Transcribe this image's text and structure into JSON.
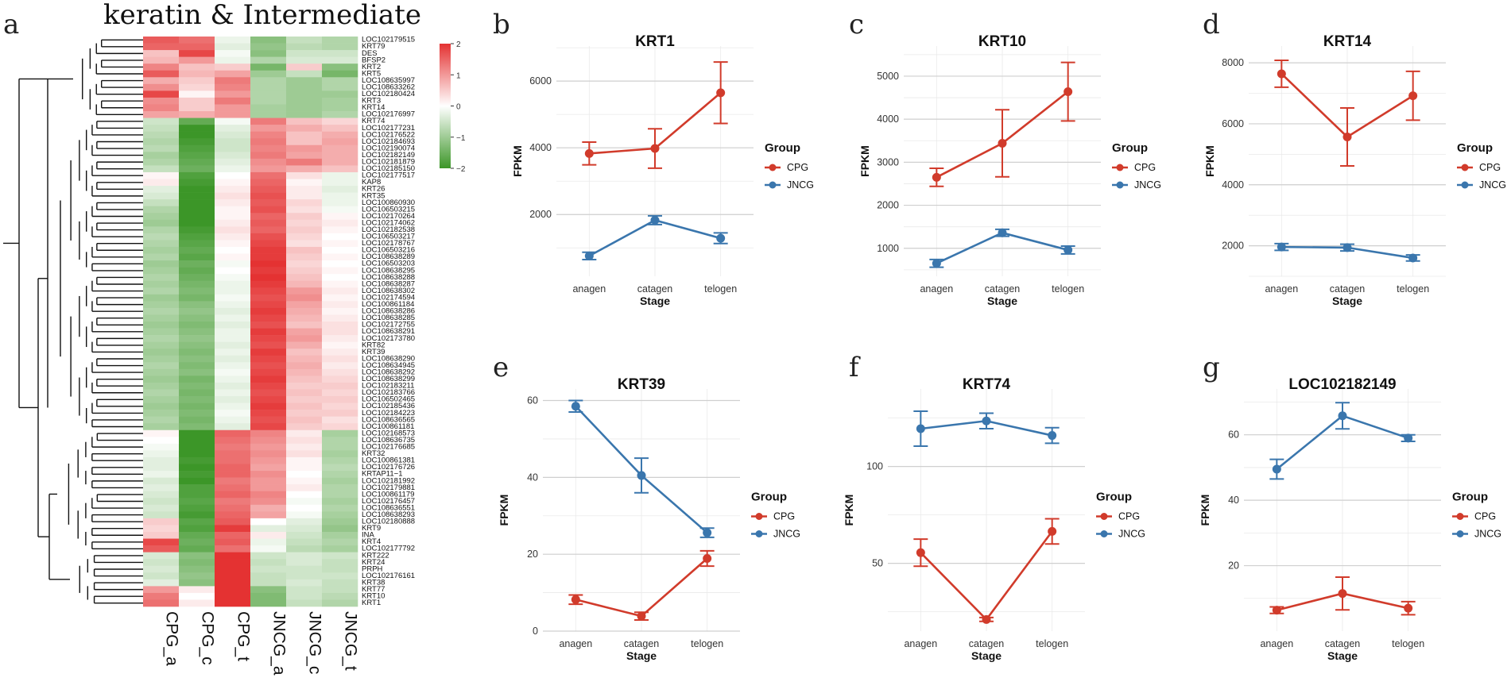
{
  "colors": {
    "CPG": "#d13b2b",
    "JNCG": "#3a76ad"
  },
  "heatmap": {
    "letter": "a",
    "title": "keratin & Intermediate",
    "columns": [
      "CPG_a",
      "CPG_c",
      "CPG_t",
      "JNCG_a",
      "JNCG_c",
      "JNCG_t"
    ],
    "colorbar": {
      "ticks": [
        "2",
        "1",
        "0",
        "−1",
        "−2"
      ],
      "min": -2,
      "max": 2
    },
    "genes": [
      "LOC102179515",
      "KRT79",
      "DES",
      "BFSP2",
      "KRT2",
      "KRT5",
      "LOC108635997",
      "LOC108633262",
      "LOC102180424",
      "KRT3",
      "KRT14",
      "LOC102176997",
      "KRT74",
      "LOC102177231",
      "LOC102176522",
      "LOC102184693",
      "LOC102190074",
      "LOC102182149",
      "LOC102181879",
      "LOC102185150",
      "LOC102177517",
      "KAP8",
      "KRT26",
      "KRT35",
      "LOC100860930",
      "LOC106503215",
      "LOC102170264",
      "LOC102174062",
      "LOC102182538",
      "LOC106503217",
      "LOC102178767",
      "LOC106503216",
      "LOC108638289",
      "LOC106503203",
      "LOC108638295",
      "LOC108638288",
      "LOC108638287",
      "LOC108638302",
      "LOC102174594",
      "LOC100861184",
      "LOC108638286",
      "LOC108638285",
      "LOC102172755",
      "LOC108638291",
      "LOC102173780",
      "KRT82",
      "KRT39",
      "LOC108638290",
      "LOC108634945",
      "LOC108638292",
      "LOC108638299",
      "LOC102183211",
      "LOC102183766",
      "LOC106502465",
      "LOC102185436",
      "LOC102184223",
      "LOC108636565",
      "LOC100861181",
      "LOC102168573",
      "LOC108636735",
      "LOC102176685",
      "KRT32",
      "LOC100861381",
      "LOC102176726",
      "KRTAP11−1",
      "LOC102181992",
      "LOC102179881",
      "LOC100861179",
      "LOC102176457",
      "LOC108636551",
      "LOC108638293",
      "LOC102180888",
      "KRT9",
      "INA",
      "KRT4",
      "LOC102177792",
      "KRT222",
      "KRT24",
      "PRPH",
      "LOC102176161",
      "KRT38",
      "KRT77",
      "KRT10",
      "KRT1"
    ],
    "values": [
      [
        1.6,
        1.4,
        -0.2,
        -1.2,
        -0.6,
        -0.8
      ],
      [
        1.5,
        1.5,
        -0.3,
        -1.1,
        -0.7,
        -0.8
      ],
      [
        0.6,
        1.8,
        -0.1,
        -1.2,
        -0.5,
        -0.5
      ],
      [
        0.7,
        1.0,
        -0.2,
        -0.8,
        -0.4,
        -0.4
      ],
      [
        1.2,
        0.6,
        0.5,
        -1.4,
        0.5,
        -1.2
      ],
      [
        1.6,
        0.7,
        0.9,
        -1.0,
        -0.6,
        -1.4
      ],
      [
        0.8,
        0.5,
        1.3,
        -0.8,
        -1.0,
        -0.8
      ],
      [
        1.1,
        0.4,
        1.2,
        -0.8,
        -1.0,
        -0.8
      ],
      [
        1.8,
        0.1,
        1.0,
        -0.8,
        -1.0,
        -1.0
      ],
      [
        1.1,
        0.5,
        1.3,
        -0.8,
        -1.0,
        -0.9
      ],
      [
        1.2,
        0.5,
        1.0,
        -0.9,
        -1.0,
        -0.9
      ],
      [
        0.9,
        0.8,
        1.0,
        -0.9,
        -1.0,
        -0.8
      ],
      [
        -0.5,
        -1.6,
        -0.1,
        1.3,
        0.6,
        0.4
      ],
      [
        -0.6,
        -2.0,
        -0.3,
        1.0,
        0.8,
        0.6
      ],
      [
        -0.7,
        -2.1,
        -0.4,
        1.2,
        0.6,
        0.8
      ],
      [
        -0.8,
        -1.9,
        -0.5,
        1.3,
        0.6,
        0.9
      ],
      [
        -0.7,
        -1.8,
        -0.5,
        1.2,
        1.0,
        0.8
      ],
      [
        -0.9,
        -1.7,
        -0.4,
        1.3,
        0.9,
        0.8
      ],
      [
        -0.8,
        -1.6,
        -0.3,
        1.1,
        1.3,
        0.8
      ],
      [
        -0.6,
        -1.5,
        -0.2,
        1.0,
        0.8,
        0.6
      ],
      [
        0.1,
        -1.8,
        0.0,
        1.4,
        0.3,
        -0.2
      ],
      [
        0.2,
        -1.9,
        0.1,
        1.5,
        0.1,
        -0.2
      ],
      [
        -0.3,
        -2.1,
        0.2,
        1.6,
        0.2,
        -0.3
      ],
      [
        -0.4,
        -2.2,
        0.3,
        1.7,
        0.2,
        -0.2
      ],
      [
        -0.6,
        -2.2,
        0.2,
        1.6,
        0.4,
        -0.2
      ],
      [
        -0.8,
        -2.1,
        0.1,
        1.7,
        0.3,
        -0.1
      ],
      [
        -0.9,
        -2.0,
        0.1,
        1.5,
        0.5,
        0.1
      ],
      [
        -1.0,
        -2.1,
        0.2,
        1.6,
        0.4,
        0.2
      ],
      [
        -0.8,
        -1.9,
        0.3,
        1.5,
        0.5,
        0.1
      ],
      [
        -0.7,
        -1.8,
        0.2,
        1.7,
        0.4,
        0.0
      ],
      [
        -0.8,
        -1.7,
        0.1,
        1.8,
        0.3,
        0.1
      ],
      [
        -0.9,
        -1.6,
        0.0,
        1.9,
        0.6,
        0.0
      ],
      [
        -0.8,
        -1.7,
        0.1,
        1.9,
        0.5,
        0.1
      ],
      [
        -1.0,
        -1.5,
        -0.1,
        2.0,
        0.4,
        0.0
      ],
      [
        -0.9,
        -1.6,
        0.0,
        1.9,
        0.5,
        0.1
      ],
      [
        -0.8,
        -1.5,
        -0.1,
        2.0,
        0.6,
        0.0
      ],
      [
        -0.9,
        -1.4,
        -0.2,
        1.9,
        0.7,
        0.1
      ],
      [
        -0.8,
        -1.3,
        -0.2,
        1.8,
        1.0,
        0.2
      ],
      [
        -1.0,
        -1.4,
        -0.1,
        1.7,
        1.1,
        0.1
      ],
      [
        -0.9,
        -1.2,
        -0.2,
        1.8,
        0.9,
        0.2
      ],
      [
        -0.8,
        -1.1,
        -0.3,
        1.9,
        0.8,
        0.1
      ],
      [
        -0.9,
        -1.2,
        -0.2,
        1.8,
        0.7,
        0.2
      ],
      [
        -1.0,
        -1.3,
        -0.3,
        1.7,
        0.6,
        0.3
      ],
      [
        -0.9,
        -1.2,
        -0.2,
        1.9,
        0.9,
        0.3
      ],
      [
        -0.8,
        -1.1,
        -0.2,
        1.8,
        1.0,
        0.2
      ],
      [
        -0.9,
        -1.2,
        -0.3,
        1.7,
        0.8,
        0.1
      ],
      [
        -1.0,
        -1.3,
        -0.2,
        1.9,
        0.6,
        0.2
      ],
      [
        -0.9,
        -1.2,
        -0.3,
        1.8,
        0.7,
        0.3
      ],
      [
        -0.8,
        -1.3,
        -0.2,
        1.7,
        0.8,
        0.2
      ],
      [
        -0.9,
        -1.2,
        -0.1,
        1.8,
        0.7,
        0.3
      ],
      [
        -1.0,
        -1.4,
        -0.2,
        1.9,
        0.6,
        0.4
      ],
      [
        -0.9,
        -1.3,
        -0.3,
        1.8,
        0.5,
        0.5
      ],
      [
        -0.8,
        -1.4,
        -0.2,
        1.7,
        0.6,
        0.4
      ],
      [
        -0.9,
        -1.3,
        -0.3,
        1.8,
        0.5,
        0.5
      ],
      [
        -1.0,
        -1.4,
        -0.2,
        1.9,
        0.6,
        0.4
      ],
      [
        -0.9,
        -1.3,
        -0.1,
        1.8,
        0.5,
        0.5
      ],
      [
        -0.8,
        -1.4,
        -0.2,
        1.7,
        0.6,
        0.3
      ],
      [
        -0.9,
        -1.3,
        -0.3,
        1.8,
        0.5,
        0.4
      ],
      [
        0.1,
        -2.0,
        1.5,
        1.2,
        0.2,
        -0.9
      ],
      [
        0.0,
        -2.1,
        1.4,
        1.1,
        0.3,
        -0.8
      ],
      [
        -0.1,
        -2.1,
        1.3,
        1.0,
        0.2,
        -0.8
      ],
      [
        -0.2,
        -2.0,
        1.4,
        1.1,
        0.3,
        -0.9
      ],
      [
        -0.3,
        -1.9,
        1.4,
        1.0,
        0.1,
        -0.8
      ],
      [
        -0.3,
        -2.0,
        1.5,
        0.9,
        0.1,
        -0.7
      ],
      [
        -0.2,
        -1.9,
        1.5,
        1.1,
        0.0,
        -0.8
      ],
      [
        -0.4,
        -2.0,
        1.3,
        1.0,
        0.1,
        -0.9
      ],
      [
        -0.3,
        -1.8,
        1.4,
        1.0,
        0.2,
        -0.8
      ],
      [
        -0.4,
        -1.8,
        1.5,
        1.2,
        0.0,
        -0.8
      ],
      [
        -0.5,
        -1.7,
        1.3,
        1.1,
        -0.1,
        -0.9
      ],
      [
        -0.4,
        -1.8,
        1.4,
        0.8,
        0.0,
        -0.8
      ],
      [
        -0.5,
        -1.9,
        1.5,
        0.9,
        -0.1,
        -0.9
      ],
      [
        0.5,
        -1.7,
        1.6,
        0.0,
        -0.3,
        -1.0
      ],
      [
        0.4,
        -1.8,
        1.9,
        -0.3,
        -0.4,
        -1.1
      ],
      [
        0.5,
        -1.6,
        1.5,
        0.2,
        -0.5,
        -0.9
      ],
      [
        1.8,
        -1.5,
        1.6,
        -0.2,
        -0.6,
        -0.8
      ],
      [
        1.6,
        -1.6,
        1.4,
        -0.1,
        -0.7,
        -0.9
      ],
      [
        -0.4,
        -1.2,
        2.2,
        -0.5,
        -0.4,
        -0.5
      ],
      [
        -0.5,
        -1.3,
        2.2,
        -0.6,
        -0.4,
        -0.6
      ],
      [
        -0.4,
        -1.2,
        2.3,
        -0.5,
        -0.5,
        -0.6
      ],
      [
        -0.5,
        -1.1,
        2.3,
        -0.6,
        -0.5,
        -0.5
      ],
      [
        -0.3,
        -1.2,
        2.2,
        -0.6,
        -0.4,
        -0.6
      ],
      [
        1.0,
        0.2,
        2.2,
        -1.2,
        -0.5,
        -0.6
      ],
      [
        1.3,
        0.0,
        2.1,
        -1.3,
        -0.5,
        -0.7
      ],
      [
        1.4,
        0.2,
        2.0,
        -1.3,
        -0.6,
        -0.8
      ]
    ]
  },
  "chart_data": [
    {
      "type": "line",
      "panel": "b",
      "title": "KRT1",
      "categories": [
        "anagen",
        "catagen",
        "telogen"
      ],
      "xlabel": "Stage",
      "ylabel": "FPKM",
      "ylim": [
        150,
        7050
      ],
      "yticks": [
        2000,
        4000,
        6000
      ],
      "legend_title": "Group",
      "series": [
        {
          "name": "CPG",
          "values": [
            3830,
            3980,
            5650
          ],
          "err": [
            340,
            590,
            920
          ]
        },
        {
          "name": "JNCG",
          "values": [
            760,
            1830,
            1290
          ],
          "err": [
            110,
            130,
            160
          ]
        }
      ]
    },
    {
      "type": "line",
      "panel": "c",
      "title": "KRT10",
      "categories": [
        "anagen",
        "catagen",
        "telogen"
      ],
      "xlabel": "Stage",
      "ylabel": "FPKM",
      "ylim": [
        350,
        5700
      ],
      "yticks": [
        1000,
        2000,
        3000,
        4000,
        5000
      ],
      "legend_title": "Group",
      "series": [
        {
          "name": "CPG",
          "values": [
            2650,
            3440,
            4640
          ],
          "err": [
            210,
            780,
            680
          ]
        },
        {
          "name": "JNCG",
          "values": [
            650,
            1360,
            960
          ],
          "err": [
            90,
            80,
            90
          ]
        }
      ]
    },
    {
      "type": "line",
      "panel": "d",
      "title": "KRT14",
      "categories": [
        "anagen",
        "catagen",
        "telogen"
      ],
      "xlabel": "Stage",
      "ylabel": "FPKM",
      "ylim": [
        1000,
        8550
      ],
      "yticks": [
        2000,
        4000,
        6000,
        8000
      ],
      "legend_title": "Group",
      "series": [
        {
          "name": "CPG",
          "values": [
            7640,
            5570,
            6920
          ],
          "err": [
            440,
            950,
            800
          ]
        },
        {
          "name": "JNCG",
          "values": [
            1960,
            1940,
            1600
          ],
          "err": [
            110,
            110,
            100
          ]
        }
      ]
    },
    {
      "type": "line",
      "panel": "e",
      "title": "KRT39",
      "categories": [
        "anagen",
        "catagen",
        "telogen"
      ],
      "xlabel": "Stage",
      "ylabel": "FPKM",
      "ylim": [
        0,
        63
      ],
      "yticks": [
        0,
        20,
        40,
        60
      ],
      "legend_title": "Group",
      "series": [
        {
          "name": "CPG",
          "values": [
            8.2,
            3.9,
            18.9
          ],
          "err": [
            1.2,
            1.0,
            2.0
          ]
        },
        {
          "name": "JNCG",
          "values": [
            58.5,
            40.5,
            25.6
          ],
          "err": [
            1.5,
            4.5,
            1.2
          ]
        }
      ]
    },
    {
      "type": "line",
      "panel": "f",
      "title": "KRT74",
      "categories": [
        "anagen",
        "catagen",
        "telogen"
      ],
      "xlabel": "Stage",
      "ylabel": "FPKM",
      "ylim": [
        15,
        140
      ],
      "yticks": [
        50,
        100
      ],
      "legend_title": "Group",
      "series": [
        {
          "name": "CPG",
          "values": [
            55.5,
            21.0,
            66.5
          ],
          "err": [
            7.0,
            1.0,
            6.5
          ]
        },
        {
          "name": "JNCG",
          "values": [
            119.5,
            123.5,
            116.0
          ],
          "err": [
            9.0,
            4.0,
            4.0
          ]
        }
      ]
    },
    {
      "type": "line",
      "panel": "g",
      "title": "LOC102182149",
      "categories": [
        "anagen",
        "catagen",
        "telogen"
      ],
      "xlabel": "Stage",
      "ylabel": "FPKM",
      "ylim": [
        0,
        74
      ],
      "yticks": [
        20,
        40,
        60
      ],
      "legend_title": "Group",
      "series": [
        {
          "name": "CPG",
          "values": [
            6.4,
            11.5,
            7.0
          ],
          "err": [
            1.0,
            5.0,
            2.0
          ]
        },
        {
          "name": "JNCG",
          "values": [
            49.5,
            65.8,
            59.0
          ],
          "err": [
            3.0,
            4.0,
            1.0
          ]
        }
      ]
    }
  ]
}
